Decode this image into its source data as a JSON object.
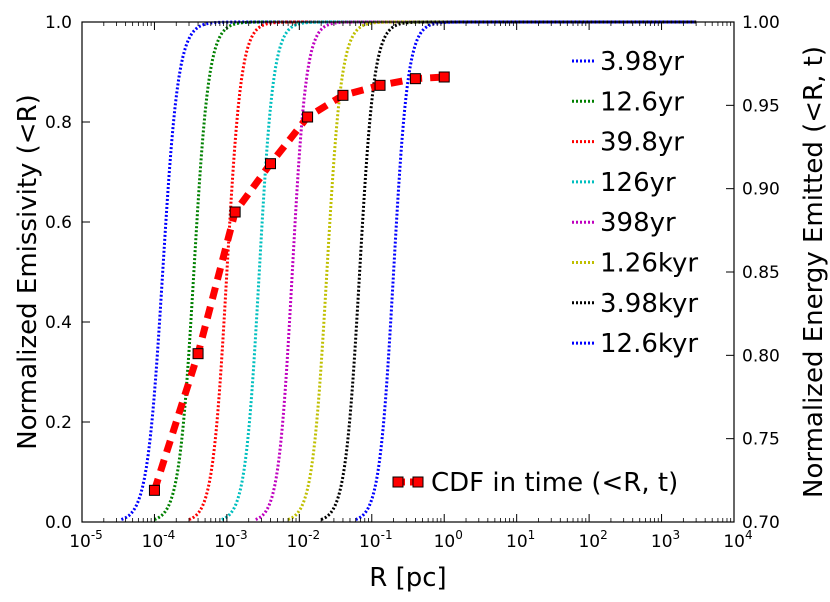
{
  "chart_data": {
    "type": "line",
    "xlabel": "R [pc]",
    "ylabel": "Normalized Emissivity (<R)",
    "ylabel_right": "Normalized Energy Emitted (<R, t)",
    "xscale": "log",
    "xlim": [
      1e-05,
      10000
    ],
    "ylim": [
      0.0,
      1.0
    ],
    "ylim_right": [
      0.7,
      1.0
    ],
    "x_ticks": [
      {
        "base": "10",
        "exp": "-5",
        "value": 1e-05
      },
      {
        "base": "10",
        "exp": "-4",
        "value": 0.0001
      },
      {
        "base": "10",
        "exp": "-3",
        "value": 0.001
      },
      {
        "base": "10",
        "exp": "-2",
        "value": 0.01
      },
      {
        "base": "10",
        "exp": "-1",
        "value": 0.1
      },
      {
        "base": "10",
        "exp": "0",
        "value": 1
      },
      {
        "base": "10",
        "exp": "1",
        "value": 10
      },
      {
        "base": "10",
        "exp": "2",
        "value": 100
      },
      {
        "base": "10",
        "exp": "3",
        "value": 1000
      },
      {
        "base": "10",
        "exp": "4",
        "value": 10000
      }
    ],
    "y_ticks": [
      {
        "label": "0.0",
        "value": 0.0
      },
      {
        "label": "0.2",
        "value": 0.2
      },
      {
        "label": "0.4",
        "value": 0.4
      },
      {
        "label": "0.6",
        "value": 0.6
      },
      {
        "label": "0.8",
        "value": 0.8
      },
      {
        "label": "1.0",
        "value": 1.0
      }
    ],
    "y_right_ticks": [
      {
        "label": "0.70",
        "value": 0.7
      },
      {
        "label": "0.75",
        "value": 0.75
      },
      {
        "label": "0.80",
        "value": 0.8
      },
      {
        "label": "0.85",
        "value": 0.85
      },
      {
        "label": "0.90",
        "value": 0.9
      },
      {
        "label": "0.95",
        "value": 0.95
      },
      {
        "label": "1.00",
        "value": 1.0
      }
    ],
    "series": [
      {
        "name": "3.98yr",
        "color": "#0000ff",
        "x_start": 3.5e-05,
        "x_half": 0.00013,
        "x_end": 3000
      },
      {
        "name": "12.6yr",
        "color": "#008000",
        "x_start": 0.0001,
        "x_half": 0.00035,
        "x_end": 3000
      },
      {
        "name": "39.8yr",
        "color": "#ff0000",
        "x_start": 0.0003,
        "x_half": 0.001,
        "x_end": 3000
      },
      {
        "name": "126yr",
        "color": "#00bfbf",
        "x_start": 0.00085,
        "x_half": 0.0028,
        "x_end": 3000
      },
      {
        "name": "398yr",
        "color": "#bf00bf",
        "x_start": 0.0025,
        "x_half": 0.008,
        "x_end": 3000
      },
      {
        "name": "1.26kyr",
        "color": "#bfbf00",
        "x_start": 0.007,
        "x_half": 0.024,
        "x_end": 3000
      },
      {
        "name": "3.98kyr",
        "color": "#000000",
        "x_start": 0.02,
        "x_half": 0.068,
        "x_end": 3000
      },
      {
        "name": "12.6kyr",
        "color": "#0000ff",
        "x_start": 0.06,
        "x_half": 0.2,
        "x_end": 3000
      }
    ],
    "cdf_series": {
      "name": "CDF in time (<R, t)",
      "color": "#ff0000",
      "axis": "right",
      "x": [
        0.0001,
        0.0004,
        0.0013,
        0.004,
        0.013,
        0.04,
        0.13,
        0.4,
        1.0
      ],
      "y": [
        0.719,
        0.801,
        0.886,
        0.915,
        0.943,
        0.956,
        0.962,
        0.966,
        0.967
      ]
    },
    "legend_position": "right"
  }
}
